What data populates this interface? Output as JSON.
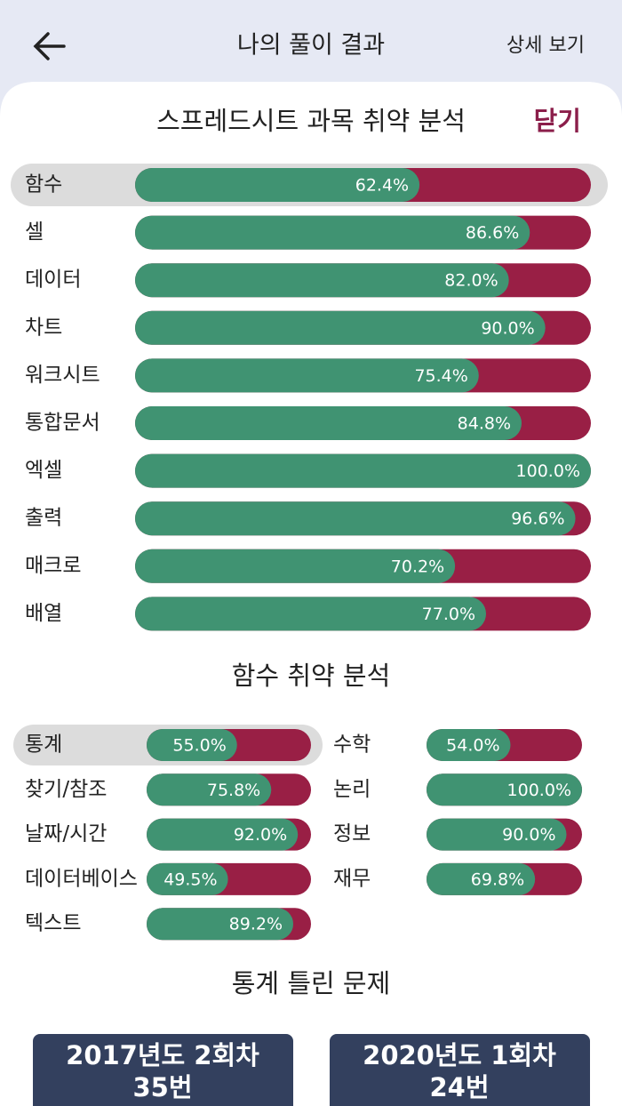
{
  "header": {
    "title": "나의 풀이 결과",
    "action": "상세 보기"
  },
  "subject_analysis": {
    "title": "스프레드시트 과목 취약 분석",
    "close": "닫기",
    "selected": 0,
    "items": [
      {
        "name": "함수",
        "value": 62.4,
        "label": "62.4%"
      },
      {
        "name": "셀",
        "value": 86.6,
        "label": "86.6%"
      },
      {
        "name": "데이터",
        "value": 82.0,
        "label": "82.0%"
      },
      {
        "name": "차트",
        "value": 90.0,
        "label": "90.0%"
      },
      {
        "name": "워크시트",
        "value": 75.4,
        "label": "75.4%"
      },
      {
        "name": "통합문서",
        "value": 84.8,
        "label": "84.8%"
      },
      {
        "name": "엑셀",
        "value": 100.0,
        "label": "100.0%"
      },
      {
        "name": "출력",
        "value": 96.6,
        "label": "96.6%"
      },
      {
        "name": "매크로",
        "value": 70.2,
        "label": "70.2%"
      },
      {
        "name": "배열",
        "value": 77.0,
        "label": "77.0%"
      }
    ]
  },
  "function_analysis": {
    "title": "함수 취약 분석",
    "selected": 0,
    "items": [
      {
        "name": "통계",
        "value": 55.0,
        "label": "55.0%"
      },
      {
        "name": "수학",
        "value": 54.0,
        "label": "54.0%"
      },
      {
        "name": "찾기/참조",
        "value": 75.8,
        "label": "75.8%"
      },
      {
        "name": "논리",
        "value": 100.0,
        "label": "100.0%"
      },
      {
        "name": "날짜/시간",
        "value": 92.0,
        "label": "92.0%"
      },
      {
        "name": "정보",
        "value": 90.0,
        "label": "90.0%"
      },
      {
        "name": "데이터베이스",
        "value": 49.5,
        "label": "49.5%"
      },
      {
        "name": "재무",
        "value": 69.8,
        "label": "69.8%"
      },
      {
        "name": "텍스트",
        "value": 89.2,
        "label": "89.2%"
      }
    ]
  },
  "wrong_questions": {
    "title": "통계 틀린 문제",
    "items": [
      {
        "exam": "2017년도 2회차",
        "number": "35번"
      },
      {
        "exam": "2020년도 1회차",
        "number": "24번"
      }
    ]
  }
}
